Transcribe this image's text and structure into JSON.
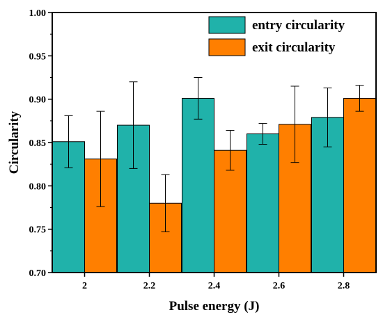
{
  "chart_data": {
    "type": "bar",
    "categories": [
      "2",
      "2.2",
      "2.4",
      "2.6",
      "2.8"
    ],
    "series": [
      {
        "name": "entry circularity",
        "color": "#20b2aa",
        "values": [
          0.851,
          0.87,
          0.901,
          0.86,
          0.879
        ],
        "error_upper": [
          0.881,
          0.92,
          0.925,
          0.872,
          0.913
        ],
        "error_lower": [
          0.821,
          0.82,
          0.877,
          0.848,
          0.845
        ]
      },
      {
        "name": "exit circularity",
        "color": "#ff7f00",
        "values": [
          0.831,
          0.78,
          0.841,
          0.871,
          0.901
        ],
        "error_upper": [
          0.886,
          0.813,
          0.864,
          0.915,
          0.916
        ],
        "error_lower": [
          0.776,
          0.747,
          0.818,
          0.827,
          0.886
        ]
      }
    ],
    "xlabel": "Pulse energy (J)",
    "ylabel": "Circularity",
    "ylim": [
      0.7,
      1.0
    ],
    "yticks": [
      "0.70",
      "0.75",
      "0.80",
      "0.85",
      "0.90",
      "0.95",
      "1.00"
    ],
    "legend": "top-right",
    "grid": false
  }
}
